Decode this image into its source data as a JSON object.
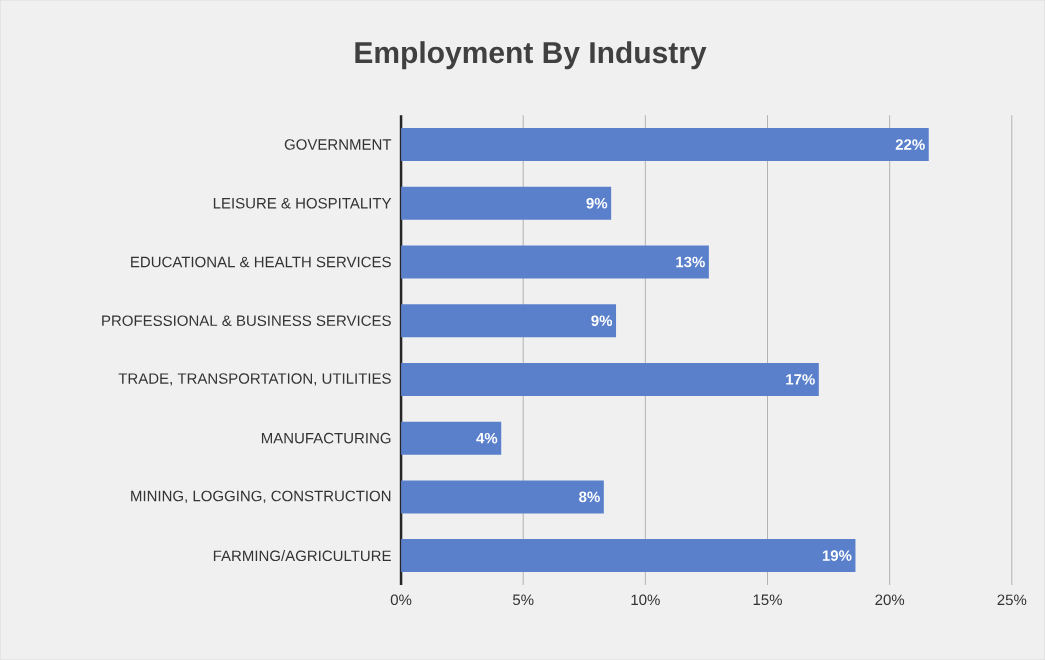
{
  "chart_data": {
    "type": "bar",
    "orientation": "horizontal",
    "title": "Employment By Industry",
    "categories": [
      "GOVERNMENT",
      "LEISURE & HOSPITALITY",
      "EDUCATIONAL & HEALTH SERVICES",
      "PROFESSIONAL & BUSINESS SERVICES",
      "TRADE, TRANSPORTATION, UTILITIES",
      "MANUFACTURING",
      "MINING, LOGGING, CONSTRUCTION",
      "FARMING/AGRICULTURE"
    ],
    "values": [
      21.6,
      8.6,
      12.6,
      8.8,
      17.1,
      4.1,
      8.3,
      18.6
    ],
    "value_labels": [
      "22%",
      "9%",
      "13%",
      "9%",
      "17%",
      "4%",
      "8%",
      "19%"
    ],
    "color": "#5a80cc",
    "xlim": [
      0,
      25
    ],
    "xticks": [
      {
        "value": 0,
        "label": "0%"
      },
      {
        "value": 5,
        "label": "5%"
      },
      {
        "value": 10,
        "label": "10%"
      },
      {
        "value": 15,
        "label": "15%"
      },
      {
        "value": 20,
        "label": "20%"
      },
      {
        "value": 25,
        "label": "25%"
      }
    ],
    "grid": "x"
  }
}
